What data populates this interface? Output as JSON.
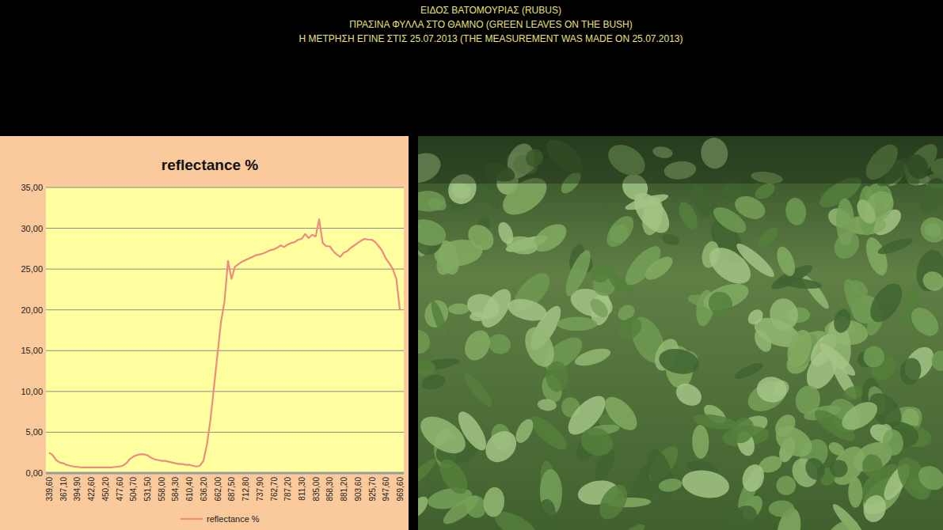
{
  "header": {
    "lines": [
      "ΕΙΔΟΣ ΒΑΤΟΜΟΥΡΙΑΣ (RUBUS)",
      "ΠΡΑΣΙΝΑ ΦΥΛΛΑ ΣΤΟ ΘΑΜΝΟ (GREEN LEAVES ON THE BUSH)",
      "Η ΜΕΤΡΗΣΗ ΕΓΙΝΕ ΣΤΙΣ 25.07.2013 (THE MEASUREMENT WAS MADE ON 25.07.2013)"
    ]
  },
  "chart_data": {
    "type": "line",
    "title": "reflectance %",
    "categories": [
      "339,60",
      null,
      null,
      null,
      "367,10",
      null,
      null,
      null,
      "394,90",
      null,
      null,
      null,
      "422,60",
      null,
      null,
      null,
      "450,20",
      null,
      null,
      null,
      "477,60",
      null,
      null,
      null,
      "504,70",
      null,
      null,
      null,
      "531,50",
      null,
      null,
      null,
      "558,00",
      null,
      null,
      null,
      "584,30",
      null,
      null,
      null,
      "610,40",
      null,
      null,
      null,
      "636,20",
      null,
      null,
      null,
      "662,00",
      null,
      null,
      null,
      "687,50",
      null,
      null,
      null,
      "712,80",
      null,
      null,
      null,
      "737,90",
      null,
      null,
      null,
      "762,70",
      null,
      null,
      null,
      "787,20",
      null,
      null,
      null,
      "811,30",
      null,
      null,
      null,
      "835,00",
      null,
      null,
      null,
      "858,30",
      null,
      null,
      null,
      "881,20",
      null,
      null,
      null,
      "903,60",
      null,
      null,
      null,
      "925,70",
      null,
      null,
      null,
      "947,60",
      null,
      null,
      null,
      "969,60"
    ],
    "series": [
      {
        "name": "reflectance %",
        "color": "#ef8a80",
        "values": [
          2.5,
          2.2,
          1.6,
          1.3,
          1.2,
          1.0,
          0.9,
          0.8,
          0.75,
          0.7,
          0.7,
          0.7,
          0.7,
          0.7,
          0.7,
          0.7,
          0.7,
          0.7,
          0.7,
          0.75,
          0.8,
          0.9,
          1.2,
          1.7,
          2.0,
          2.2,
          2.3,
          2.3,
          2.2,
          1.9,
          1.7,
          1.6,
          1.5,
          1.5,
          1.4,
          1.3,
          1.2,
          1.1,
          1.1,
          1.0,
          1.0,
          0.9,
          0.8,
          0.9,
          1.5,
          3.5,
          6.5,
          10.5,
          14.5,
          18.5,
          21.0,
          26.0,
          23.8,
          25.3,
          25.6,
          25.9,
          26.1,
          26.3,
          26.5,
          26.7,
          26.8,
          26.9,
          27.1,
          27.3,
          27.4,
          27.6,
          27.9,
          27.7,
          28.0,
          28.2,
          28.3,
          28.6,
          28.7,
          29.3,
          28.8,
          29.2,
          29.0,
          31.1,
          28.2,
          27.8,
          27.8,
          27.2,
          26.8,
          26.5,
          27.0,
          27.2,
          27.6,
          27.9,
          28.2,
          28.5,
          28.7,
          28.6,
          28.6,
          28.3,
          27.8,
          27.2,
          26.3,
          25.7,
          25.0,
          23.8,
          20.0
        ]
      }
    ],
    "ylim": [
      0,
      35
    ],
    "yticks": [
      {
        "value": 0,
        "label": "0,00"
      },
      {
        "value": 5,
        "label": "5,00"
      },
      {
        "value": 10,
        "label": "10,00"
      },
      {
        "value": 15,
        "label": "15,00"
      },
      {
        "value": 20,
        "label": "20,00"
      },
      {
        "value": 25,
        "label": "25,00"
      },
      {
        "value": 30,
        "label": "30,00"
      },
      {
        "value": 35,
        "label": "35,00"
      }
    ],
    "grid": true,
    "legend": "bottom"
  }
}
